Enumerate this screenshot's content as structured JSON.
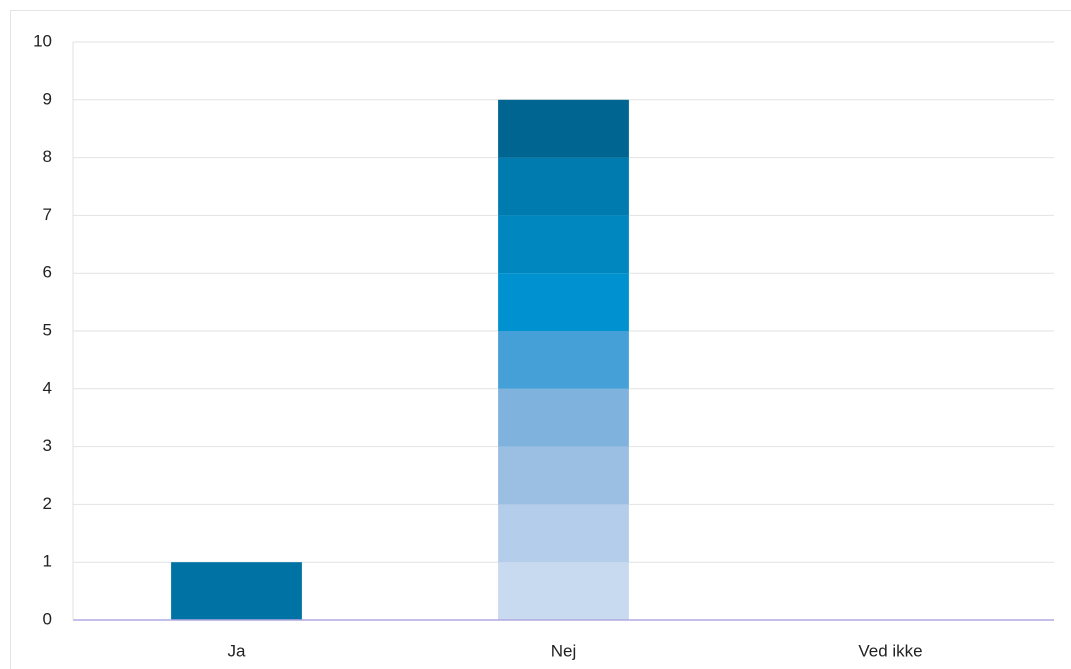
{
  "chart_data": {
    "type": "stacked_bar",
    "categories": [
      "Ja",
      "Nej",
      "Ved ikke"
    ],
    "series": [
      {
        "color": "#0072a3",
        "values": [
          1,
          0,
          0
        ]
      },
      {
        "color": "#c8daf0",
        "values": [
          0,
          1,
          0
        ]
      },
      {
        "color": "#b3cdea",
        "values": [
          0,
          1,
          0
        ]
      },
      {
        "color": "#9bbfe2",
        "values": [
          0,
          1,
          0
        ]
      },
      {
        "color": "#80b2de",
        "values": [
          0,
          1,
          0
        ]
      },
      {
        "color": "#46a0d8",
        "values": [
          0,
          1,
          0
        ]
      },
      {
        "color": "#0092d0",
        "values": [
          0,
          1,
          0
        ]
      },
      {
        "color": "#0087c0",
        "values": [
          0,
          1,
          0
        ]
      },
      {
        "color": "#007bb0",
        "values": [
          0,
          1,
          0
        ]
      },
      {
        "color": "#006591",
        "values": [
          0,
          1,
          0
        ]
      }
    ],
    "ylim": [
      0,
      10
    ],
    "yticks": [
      0,
      1,
      2,
      3,
      4,
      5,
      6,
      7,
      8,
      9,
      10
    ],
    "grid": true
  }
}
